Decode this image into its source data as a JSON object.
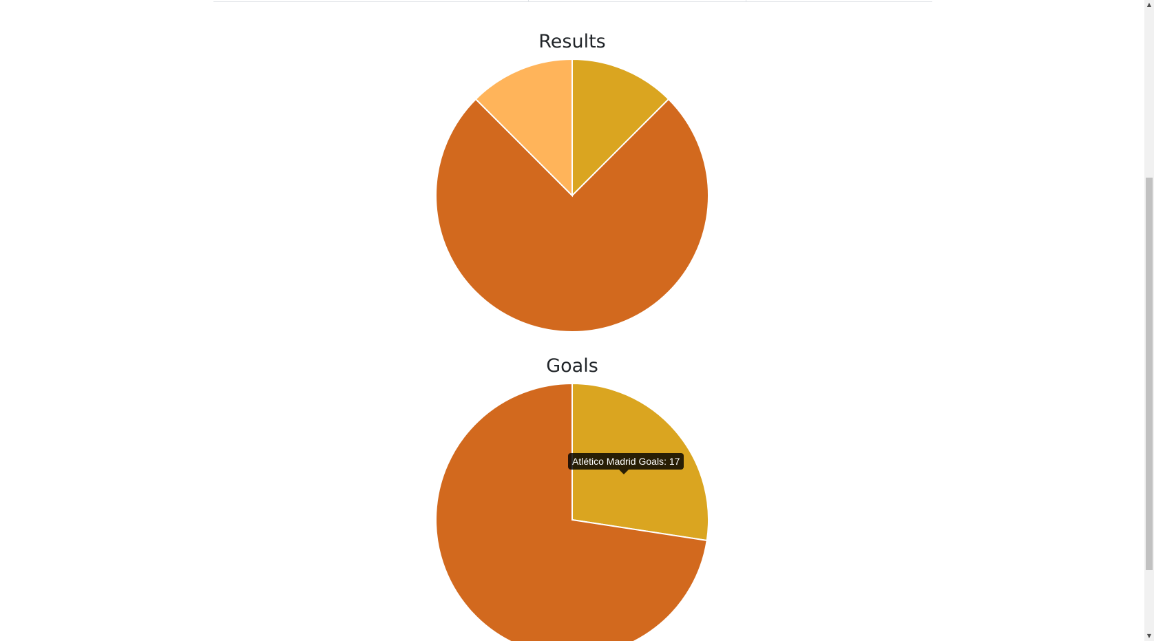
{
  "chart_data": [
    {
      "type": "pie",
      "title": "Results",
      "slices": [
        {
          "value": 1,
          "color": "#DAA520"
        },
        {
          "value": 6,
          "color": "#D2691E"
        },
        {
          "value": 1,
          "color": "#FFB45A"
        }
      ]
    },
    {
      "type": "pie",
      "title": "Goals",
      "slices": [
        {
          "label": "Atlético Madrid Goals",
          "value": 17,
          "color": "#DAA520"
        },
        {
          "value": 45,
          "color": "#D2691E"
        }
      ],
      "tooltip": {
        "label": "Atlético Madrid Goals",
        "value": 17
      }
    }
  ],
  "icons": {
    "scroll_up": "scroll-up-arrow-icon",
    "scroll_down": "scroll-down-arrow-icon"
  },
  "scroll_up_glyph": "▲",
  "scroll_down_glyph": "▼"
}
